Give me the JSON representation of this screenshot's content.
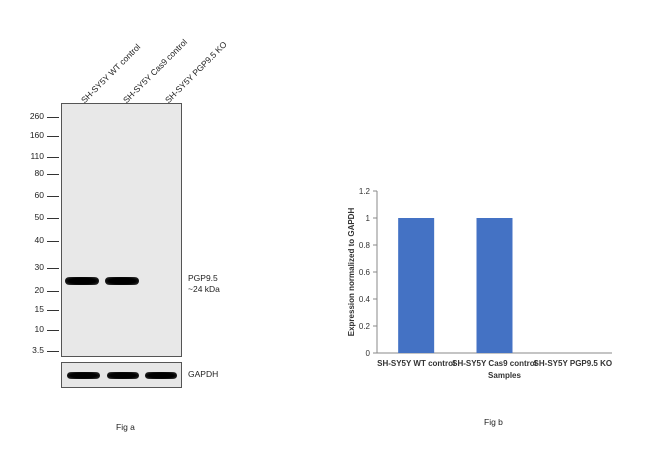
{
  "fig_a": {
    "caption": "Fig a",
    "lanes": [
      "SH-SY5Y WT control",
      "SH-SY5Y Cas9 control",
      "SH-SY5Y PGP9.5 KO"
    ],
    "markers": [
      "260",
      "160",
      "110",
      "80",
      "60",
      "50",
      "40",
      "30",
      "20",
      "15",
      "10",
      "3.5"
    ],
    "band_label_line1": "PGP9.5",
    "band_label_line2": "~24 kDa",
    "loading_label": "GAPDH"
  },
  "fig_b": {
    "caption": "Fig b"
  },
  "chart_data": {
    "type": "bar",
    "categories": [
      "SH-SY5Y WT control",
      "SH-SY5Y Cas9 control",
      "SH-SY5Y PGP9.5 KO"
    ],
    "values": [
      1,
      1,
      0
    ],
    "xlabel": "Samples",
    "ylabel": "Expression normalized to GAPDH",
    "ylim": [
      0,
      1.2
    ],
    "yticks": [
      "0",
      "0.2",
      "0.4",
      "0.6",
      "0.8",
      "1",
      "1.2"
    ],
    "grid": false,
    "bar_color": "#4472c4"
  }
}
